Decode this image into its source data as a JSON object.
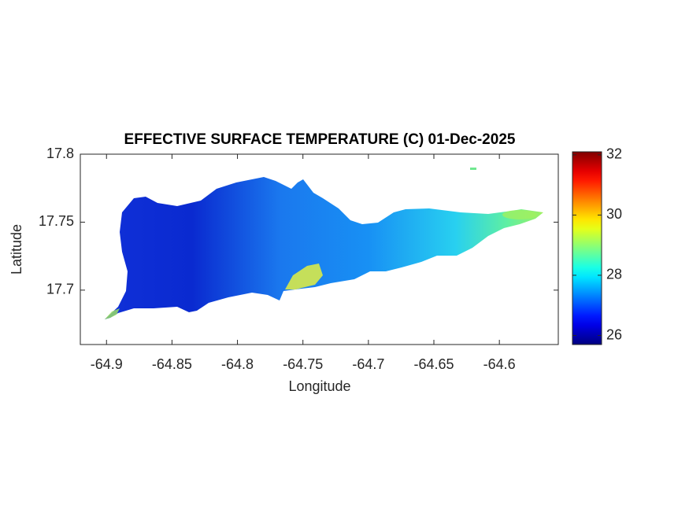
{
  "chart_data": {
    "type": "map",
    "title": "EFFECTIVE SURFACE TEMPERATURE (C) 01-Dec-2025",
    "x_label": "Longitude",
    "y_label": "Latitude",
    "xlim": [
      -64.92,
      -64.555
    ],
    "xticks": [
      -64.9,
      -64.85,
      -64.8,
      -64.75,
      -64.7,
      -64.65,
      -64.6
    ],
    "ylim": [
      17.66,
      17.8
    ],
    "yticks": [
      17.7,
      17.75,
      17.8
    ],
    "colormap": "jet",
    "clim": [
      25.7,
      32.1
    ],
    "cticks": [
      26,
      28,
      30,
      32
    ]
  }
}
